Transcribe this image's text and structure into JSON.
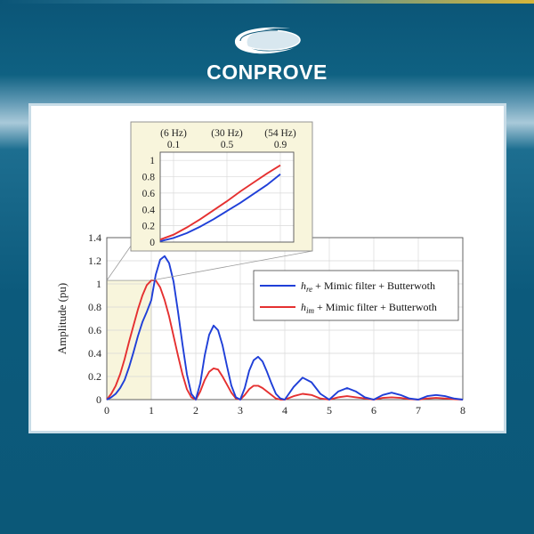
{
  "brand": {
    "name": "CONPROVE"
  },
  "chart_data": [
    {
      "type": "line",
      "title": "",
      "xlabel": "",
      "ylabel": "Amplitude (pu)",
      "xlim": [
        0,
        8
      ],
      "ylim": [
        0,
        1.4
      ],
      "xticks": [
        "0",
        "1",
        "2",
        "3",
        "4",
        "5",
        "6",
        "7",
        "8"
      ],
      "yticks": [
        "0",
        "0.2",
        "0.4",
        "0.6",
        "0.8",
        "1",
        "1.2",
        "1.4"
      ],
      "grid": true,
      "legend_position": "top-right",
      "shaded_region": {
        "x": [
          0,
          1.0
        ],
        "y": [
          0,
          1.03
        ],
        "color": "#f8f5dc"
      },
      "series": [
        {
          "name": "h_re + Mimic filter + Butterwoth",
          "name_parts": {
            "base": "h",
            "sub": "re",
            "rest": " + Mimic filter + Butterwoth"
          },
          "color": "#1f3fd8",
          "x": [
            0,
            0.1,
            0.2,
            0.3,
            0.4,
            0.5,
            0.6,
            0.7,
            0.8,
            0.9,
            1.0,
            1.1,
            1.2,
            1.3,
            1.4,
            1.5,
            1.6,
            1.7,
            1.8,
            1.9,
            2.0,
            2.1,
            2.2,
            2.3,
            2.4,
            2.5,
            2.6,
            2.7,
            2.8,
            2.9,
            3.0,
            3.1,
            3.2,
            3.3,
            3.4,
            3.5,
            3.6,
            3.7,
            3.8,
            3.9,
            4.0,
            4.2,
            4.4,
            4.6,
            4.8,
            5.0,
            5.2,
            5.4,
            5.6,
            5.8,
            6.0,
            6.2,
            6.4,
            6.6,
            6.8,
            7.0,
            7.2,
            7.4,
            7.6,
            7.8,
            8.0
          ],
          "y": [
            0,
            0.02,
            0.05,
            0.1,
            0.17,
            0.28,
            0.41,
            0.55,
            0.67,
            0.76,
            0.86,
            1.08,
            1.21,
            1.24,
            1.18,
            1.02,
            0.76,
            0.48,
            0.22,
            0.05,
            0,
            0.14,
            0.38,
            0.56,
            0.64,
            0.6,
            0.47,
            0.29,
            0.12,
            0.02,
            0,
            0.1,
            0.25,
            0.34,
            0.37,
            0.33,
            0.24,
            0.14,
            0.05,
            0.01,
            0,
            0.11,
            0.19,
            0.15,
            0.05,
            0,
            0.07,
            0.1,
            0.07,
            0.02,
            0,
            0.04,
            0.06,
            0.04,
            0.01,
            0,
            0.03,
            0.04,
            0.03,
            0.01,
            0
          ]
        },
        {
          "name": "h_im + Mimic filter + Butterwoth",
          "name_parts": {
            "base": "h",
            "sub": "im",
            "rest": " + Mimic filter + Butterwoth"
          },
          "color": "#e53030",
          "x": [
            0,
            0.1,
            0.2,
            0.3,
            0.4,
            0.5,
            0.6,
            0.7,
            0.8,
            0.9,
            1.0,
            1.1,
            1.2,
            1.3,
            1.4,
            1.5,
            1.6,
            1.7,
            1.8,
            1.9,
            2.0,
            2.1,
            2.2,
            2.3,
            2.4,
            2.5,
            2.6,
            2.7,
            2.8,
            2.9,
            3.0,
            3.1,
            3.2,
            3.3,
            3.4,
            3.5,
            3.6,
            3.7,
            3.8,
            3.9,
            4.0,
            4.2,
            4.4,
            4.6,
            4.8,
            5.0,
            5.2,
            5.4,
            5.6,
            5.8,
            6.0,
            6.2,
            6.4,
            6.6,
            6.8,
            7.0,
            7.2,
            7.4,
            7.6,
            7.8,
            8.0
          ],
          "y": [
            0,
            0.05,
            0.12,
            0.22,
            0.35,
            0.5,
            0.64,
            0.78,
            0.9,
            0.99,
            1.03,
            1.03,
            0.97,
            0.86,
            0.72,
            0.55,
            0.38,
            0.22,
            0.09,
            0.02,
            0,
            0.07,
            0.17,
            0.24,
            0.27,
            0.26,
            0.2,
            0.13,
            0.06,
            0.01,
            0,
            0.04,
            0.09,
            0.12,
            0.12,
            0.1,
            0.07,
            0.04,
            0.01,
            0,
            0,
            0.03,
            0.05,
            0.04,
            0.01,
            0,
            0.02,
            0.03,
            0.02,
            0.01,
            0,
            0.015,
            0.02,
            0.015,
            0.005,
            0,
            0.01,
            0.015,
            0.01,
            0.004,
            0
          ]
        }
      ]
    },
    {
      "type": "line",
      "title": "",
      "xlim": [
        0,
        1
      ],
      "ylim": [
        0,
        1.1
      ],
      "xticks": [
        "0.1",
        "0.5",
        "0.9"
      ],
      "xticks_top": [
        "(6 Hz)",
        "(30 Hz)",
        "(54 Hz)"
      ],
      "yticks": [
        "0",
        "0.2",
        "0.4",
        "0.6",
        "0.8",
        "1"
      ],
      "grid": true,
      "background": "#f8f5dc",
      "series": [
        {
          "color": "#1f3fd8",
          "x": [
            0.0,
            0.1,
            0.2,
            0.3,
            0.4,
            0.5,
            0.6,
            0.7,
            0.8,
            0.9
          ],
          "y": [
            0.01,
            0.05,
            0.11,
            0.19,
            0.28,
            0.38,
            0.48,
            0.59,
            0.7,
            0.83
          ]
        },
        {
          "color": "#e53030",
          "x": [
            0.0,
            0.1,
            0.2,
            0.3,
            0.4,
            0.5,
            0.6,
            0.7,
            0.8,
            0.9
          ],
          "y": [
            0.03,
            0.09,
            0.18,
            0.28,
            0.39,
            0.5,
            0.62,
            0.73,
            0.84,
            0.94
          ]
        }
      ]
    }
  ]
}
